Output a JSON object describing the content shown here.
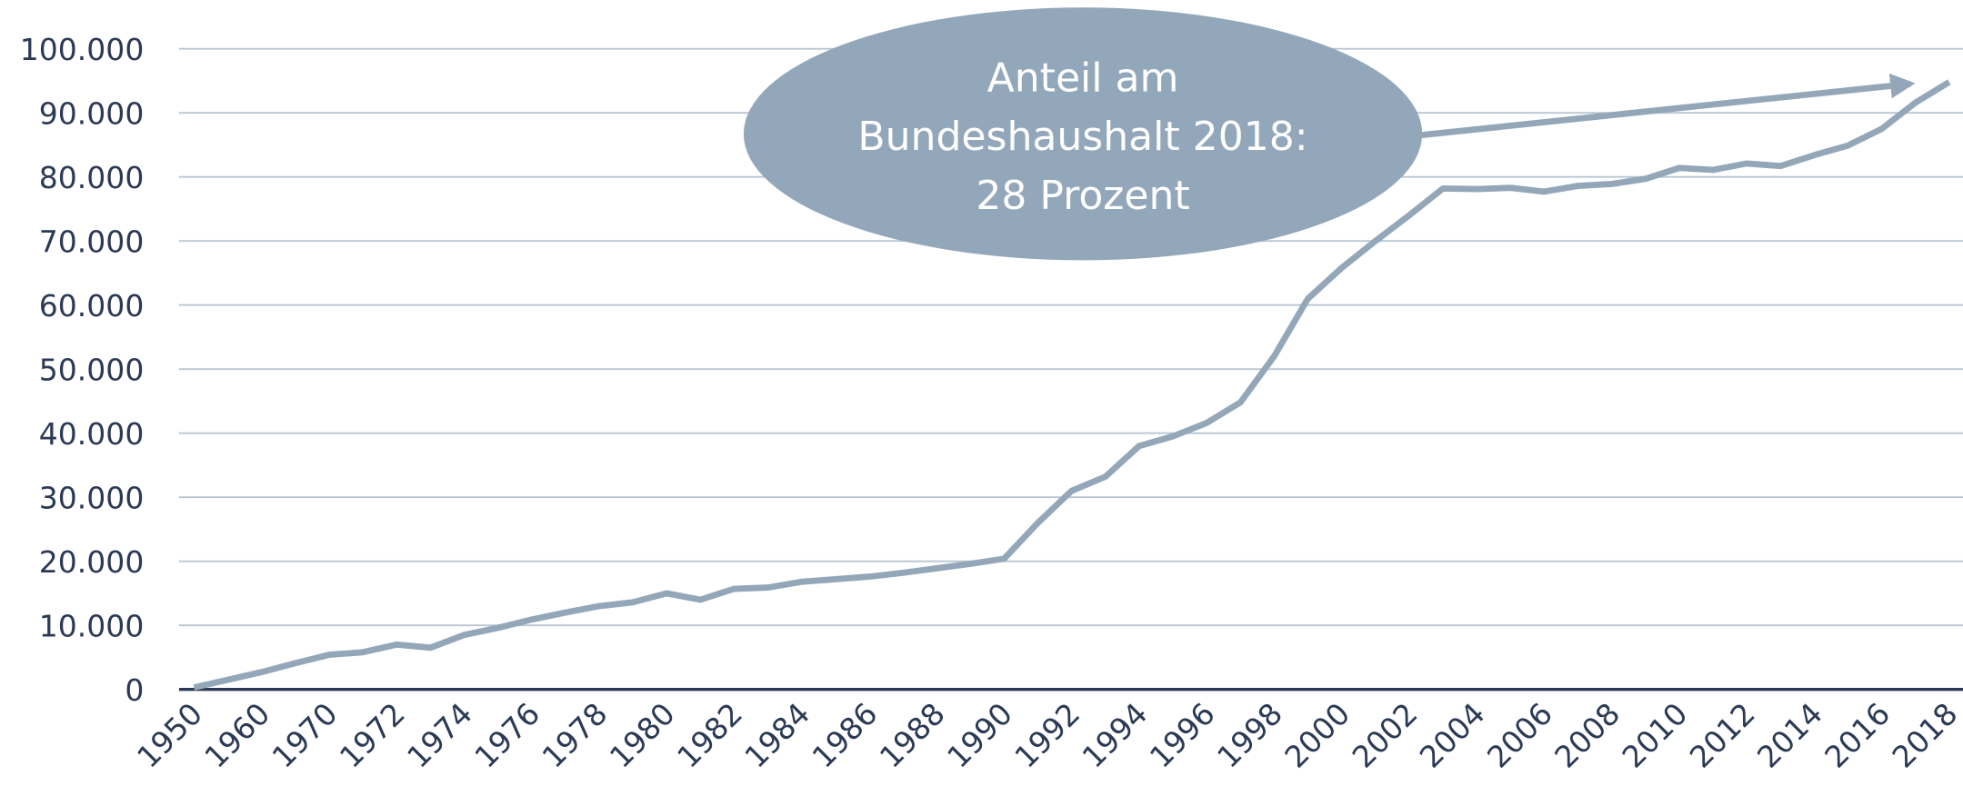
{
  "chart_data": {
    "type": "line",
    "categories": [
      "1950",
      null,
      "1960",
      null,
      "1970",
      null,
      "1972",
      null,
      "1974",
      null,
      "1976",
      null,
      "1978",
      null,
      "1980",
      null,
      "1982",
      null,
      "1984",
      null,
      "1986",
      null,
      "1988",
      null,
      "1990",
      null,
      "1992",
      null,
      "1994",
      null,
      "1996",
      null,
      "1998",
      null,
      "2000",
      null,
      "2002",
      null,
      "2004",
      null,
      "2006",
      null,
      "2008",
      null,
      "2010",
      null,
      "2012",
      null,
      "2014",
      null,
      "2016",
      null,
      "2018"
    ],
    "values": [
      300,
      1500,
      2700,
      4100,
      5400,
      5800,
      7000,
      6500,
      8500,
      9600,
      10900,
      12000,
      13000,
      13600,
      15000,
      14000,
      15700,
      15900,
      16800,
      17200,
      17600,
      18200,
      18900,
      19600,
      20400,
      26000,
      31000,
      33200,
      38000,
      39500,
      41600,
      44800,
      52000,
      61000,
      65800,
      70000,
      74000,
      78200,
      78100,
      78300,
      77700,
      78600,
      78900,
      79700,
      81400,
      81100,
      82100,
      81700,
      83400,
      84900,
      87500,
      91600,
      94800
    ],
    "color": "#94a7b9",
    "ylim": [
      0,
      100000
    ],
    "yticks": [
      0,
      {
        "value": 10000,
        "label": "10.000"
      },
      {
        "value": 20000,
        "label": "20.000"
      },
      {
        "value": 30000,
        "label": "30.000"
      },
      {
        "value": 40000,
        "label": "40.000"
      },
      {
        "value": 50000,
        "label": "50.000"
      },
      {
        "value": 60000,
        "label": "60.000"
      },
      {
        "value": 70000,
        "label": "70.000"
      },
      {
        "value": 80000,
        "label": "80.000"
      },
      {
        "value": 90000,
        "label": "90.000"
      },
      {
        "value": 100000,
        "label": "100.000"
      }
    ],
    "grid": true,
    "annotation": [
      "Anteil am",
      "Bundeshaushalt 2018:",
      "28 Prozent"
    ]
  }
}
